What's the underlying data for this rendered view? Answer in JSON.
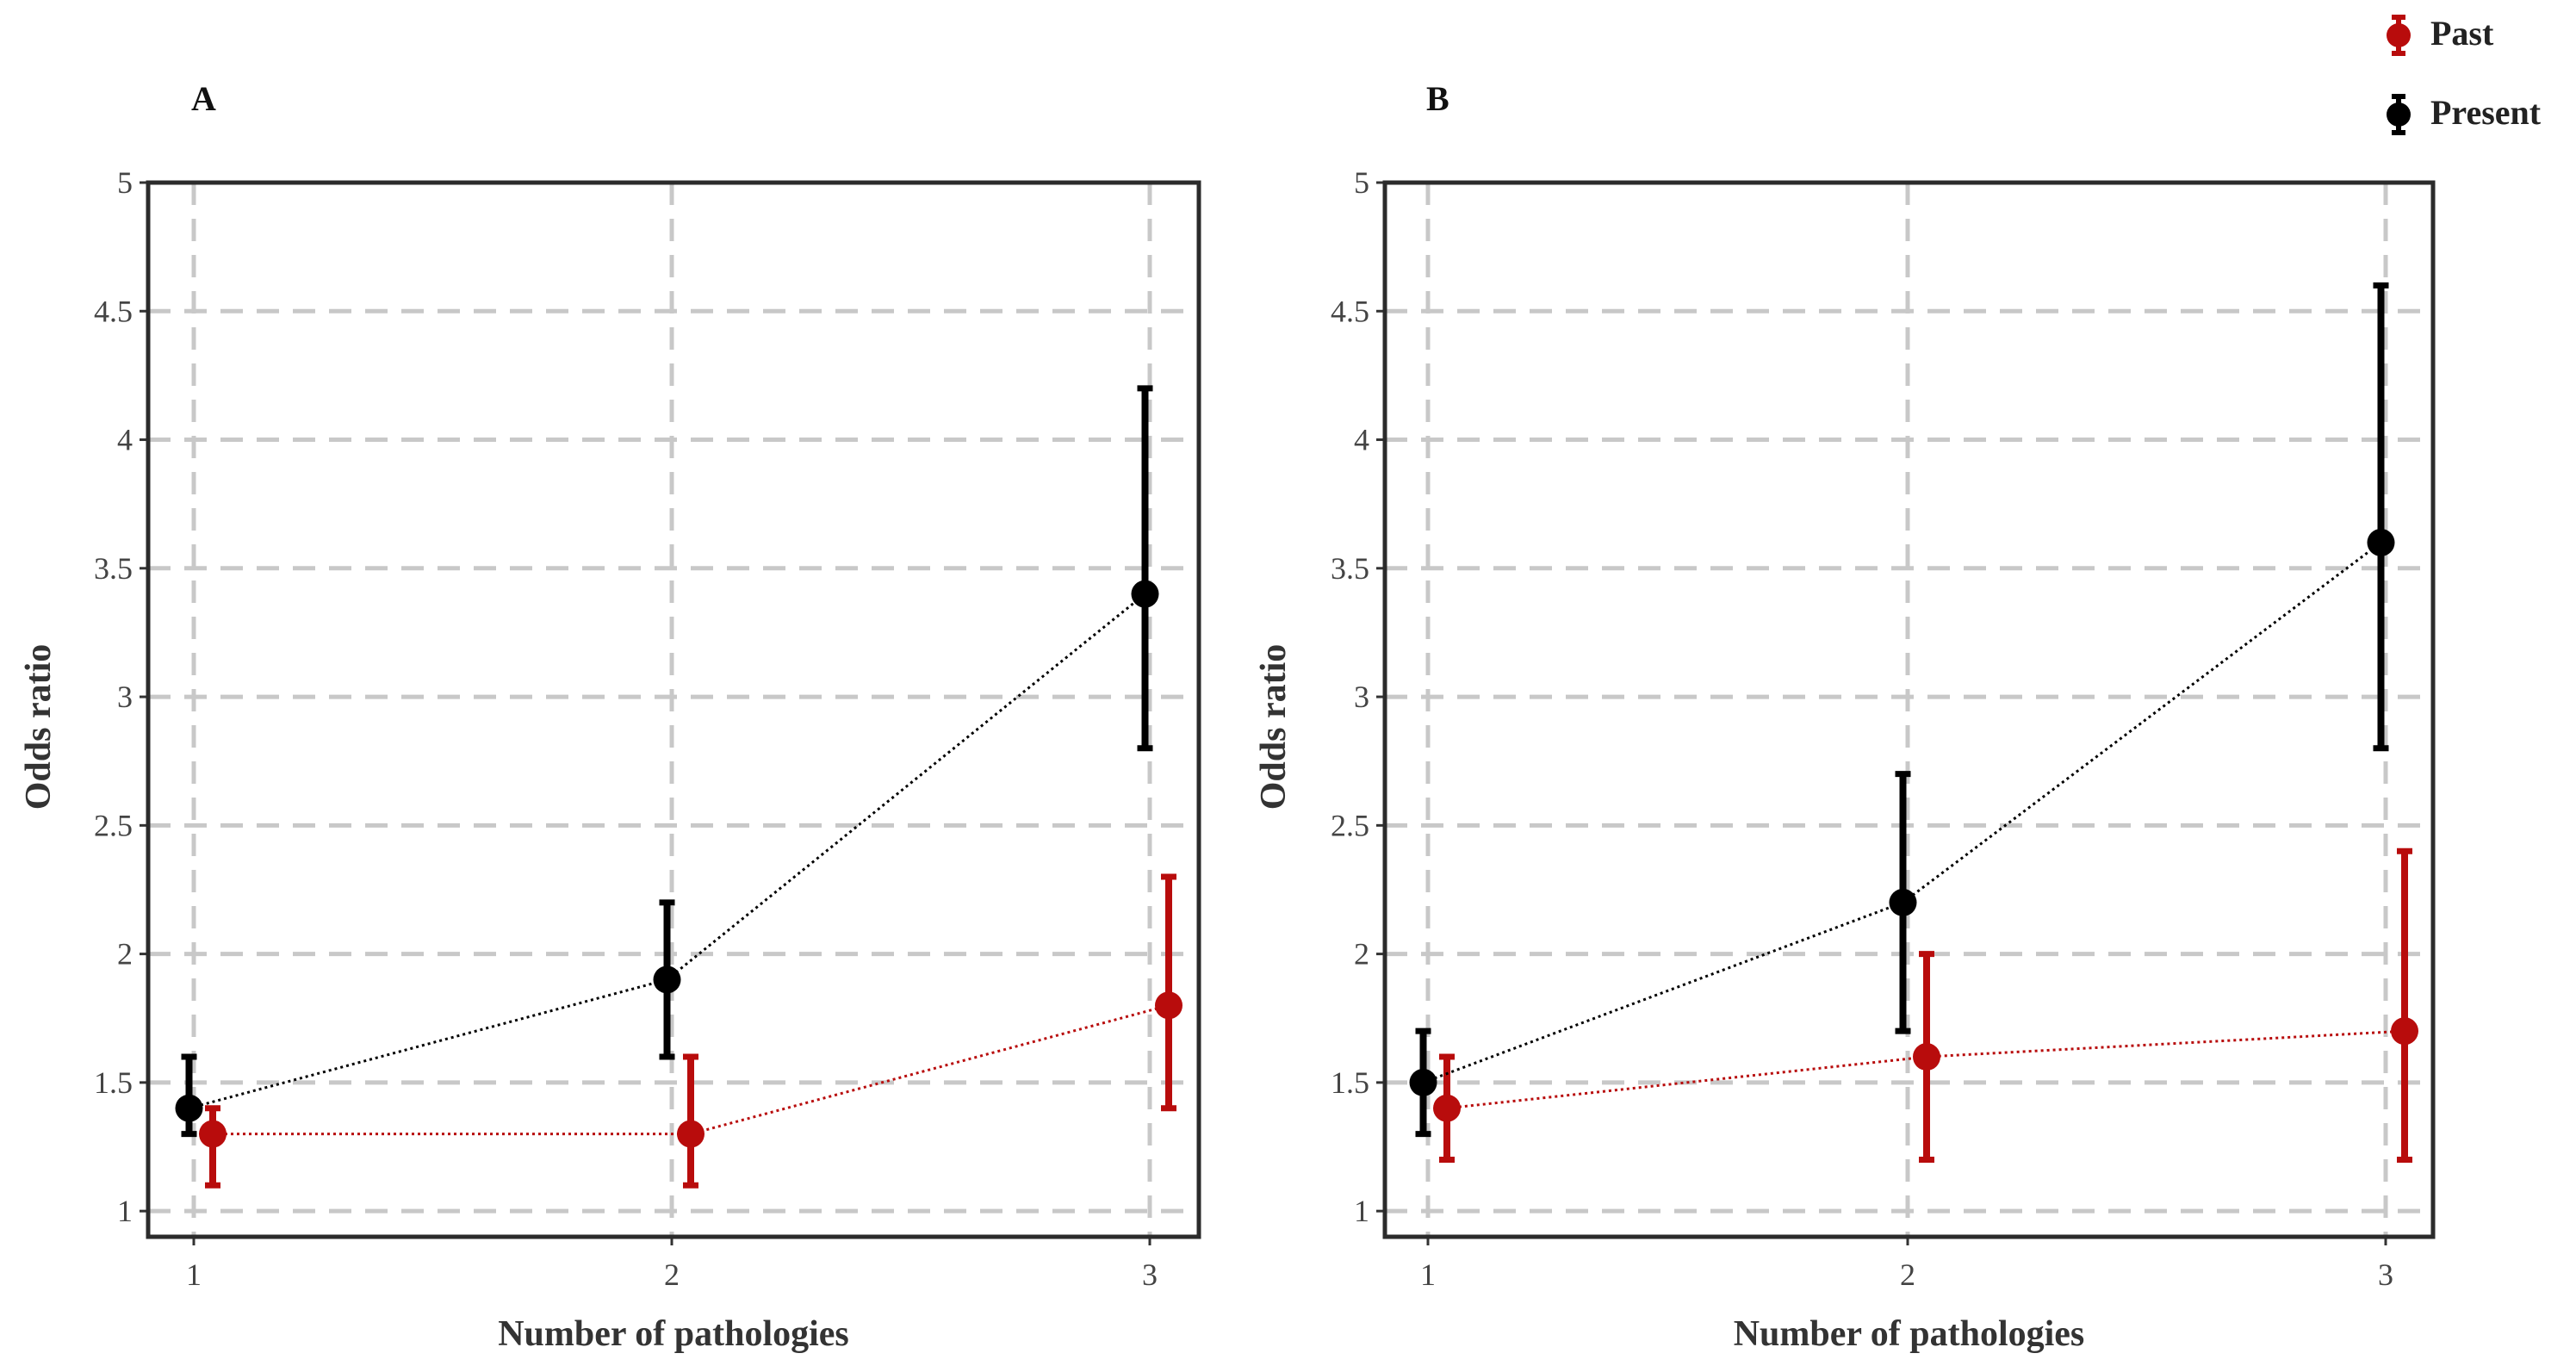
{
  "legend": {
    "entries": [
      {
        "name": "Past",
        "color": "#b80c0c"
      },
      {
        "name": "Present",
        "color": "#000000"
      }
    ]
  },
  "chart_data": [
    {
      "type": "line",
      "panel_label": "A",
      "xlabel": "Number of pathologies",
      "ylabel": "Odds ratio",
      "x": [
        1,
        2,
        3
      ],
      "x_ticks": [
        "1",
        "2",
        "3"
      ],
      "y_ticks": [
        "1",
        "1.5",
        "2",
        "2.5",
        "3",
        "3.5",
        "4",
        "4.5",
        "5"
      ],
      "ylim": [
        0.9,
        5
      ],
      "grid": true,
      "series": [
        {
          "name": "Past",
          "color": "#b80c0c",
          "values": [
            1.3,
            1.3,
            1.8
          ],
          "lower": [
            1.1,
            1.1,
            1.4
          ],
          "upper": [
            1.4,
            1.6,
            2.3
          ]
        },
        {
          "name": "Present",
          "color": "#000000",
          "values": [
            1.4,
            1.9,
            3.4
          ],
          "lower": [
            1.3,
            1.6,
            2.8
          ],
          "upper": [
            1.6,
            2.2,
            4.2
          ]
        }
      ]
    },
    {
      "type": "line",
      "panel_label": "B",
      "xlabel": "Number of pathologies",
      "ylabel": "Odds ratio",
      "x": [
        1,
        2,
        3
      ],
      "x_ticks": [
        "1",
        "2",
        "3"
      ],
      "y_ticks": [
        "1",
        "1.5",
        "2",
        "2.5",
        "3",
        "3.5",
        "4",
        "4.5",
        "5"
      ],
      "ylim": [
        0.9,
        5
      ],
      "grid": true,
      "series": [
        {
          "name": "Past",
          "color": "#b80c0c",
          "values": [
            1.4,
            1.6,
            1.7
          ],
          "lower": [
            1.2,
            1.2,
            1.2
          ],
          "upper": [
            1.6,
            2.0,
            2.4
          ]
        },
        {
          "name": "Present",
          "color": "#000000",
          "values": [
            1.5,
            2.2,
            3.6
          ],
          "lower": [
            1.3,
            1.7,
            2.8
          ],
          "upper": [
            1.7,
            2.7,
            4.6
          ]
        }
      ]
    }
  ]
}
